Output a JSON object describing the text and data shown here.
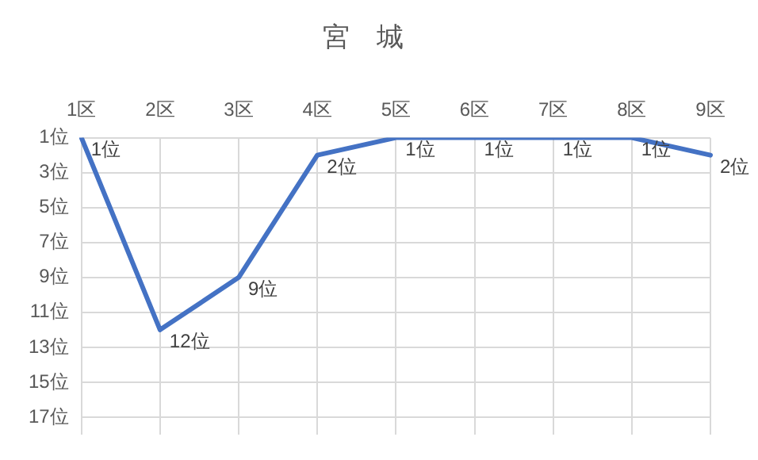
{
  "chart_data": {
    "type": "line",
    "title": "宮　城",
    "categories": [
      "1区",
      "2区",
      "3区",
      "4区",
      "5区",
      "6区",
      "7区",
      "8区",
      "9区"
    ],
    "series": [
      {
        "color": "#4472c4",
        "values": [
          1,
          12,
          9,
          2,
          1,
          1,
          1,
          1,
          2
        ],
        "value_labels": [
          "1位",
          "12位",
          "9位",
          "2位",
          "1位",
          "1位",
          "1位",
          "1位",
          "2位"
        ]
      }
    ],
    "ylim": [
      18,
      1
    ],
    "yticks": [
      {
        "value": 1,
        "label": "1位"
      },
      {
        "value": 3,
        "label": "3位"
      },
      {
        "value": 5,
        "label": "5位"
      },
      {
        "value": 7,
        "label": "7位"
      },
      {
        "value": 9,
        "label": "9位"
      },
      {
        "value": 11,
        "label": "11位"
      },
      {
        "value": 13,
        "label": "13位"
      },
      {
        "value": 15,
        "label": "15位"
      },
      {
        "value": 17,
        "label": "17位"
      }
    ],
    "grid": true,
    "legend": false,
    "marker": "none",
    "line_style": "solid"
  }
}
